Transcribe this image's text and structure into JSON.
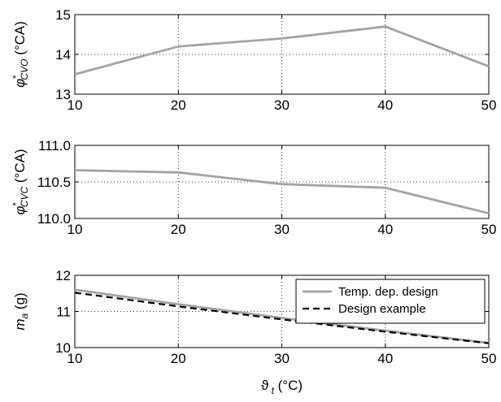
{
  "chart_data": [
    {
      "type": "line",
      "x": [
        10,
        20,
        30,
        40,
        50
      ],
      "xlim": [
        10,
        50
      ],
      "ylim": [
        13,
        15
      ],
      "xticks": [
        "10",
        "20",
        "30",
        "40",
        "50"
      ],
      "yticks": [
        "13",
        "14",
        "15"
      ],
      "ylabel": {
        "symbol": "φ",
        "sup": "*",
        "sub": "CVO",
        "unit": " (°CA)"
      },
      "grid": true,
      "series": [
        {
          "values": [
            13.5,
            14.2,
            14.4,
            14.7,
            13.7
          ],
          "color": "#a3a3a3",
          "dash": "solid"
        }
      ]
    },
    {
      "type": "line",
      "x": [
        10,
        20,
        30,
        40,
        50
      ],
      "xlim": [
        10,
        50
      ],
      "ylim": [
        110.0,
        111.0
      ],
      "xticks": [
        "10",
        "20",
        "30",
        "40",
        "50"
      ],
      "yticks": [
        "110.0",
        "110.5",
        "111.0"
      ],
      "ylabel": {
        "symbol": "φ",
        "sup": "*",
        "sub": "CVC",
        "unit": " (°CA)"
      },
      "grid": true,
      "series": [
        {
          "values": [
            110.66,
            110.63,
            110.47,
            110.42,
            110.07
          ],
          "color": "#a3a3a3",
          "dash": "solid"
        }
      ]
    },
    {
      "type": "line",
      "x": [
        10,
        20,
        30,
        40,
        50
      ],
      "xlim": [
        10,
        50
      ],
      "ylim": [
        10,
        12
      ],
      "xticks": [
        "10",
        "20",
        "30",
        "40",
        "50"
      ],
      "yticks": [
        "10",
        "11",
        "12"
      ],
      "ylabel": {
        "symbol": "m",
        "sup": "",
        "sub": "a",
        "unit": " (g)"
      },
      "xlabel": {
        "symbol": "ϑ",
        "sub": "t",
        "unit": " (°C)"
      },
      "grid": true,
      "legend_position": "top-right",
      "series": [
        {
          "name": "Temp. dep. design",
          "values": [
            11.6,
            11.2,
            10.82,
            10.47,
            10.13
          ],
          "color": "#a3a3a3",
          "dash": "solid"
        },
        {
          "name": "Design example",
          "values": [
            11.52,
            11.14,
            10.78,
            10.44,
            10.12
          ],
          "color": "#000000",
          "dash": "dashed"
        }
      ]
    }
  ]
}
